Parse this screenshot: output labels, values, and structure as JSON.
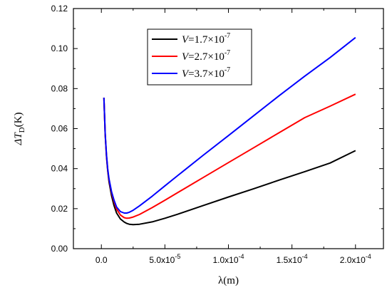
{
  "chart_data": {
    "type": "line",
    "xlabel": "λ(m)",
    "ylabel_main": "ΔT",
    "ylabel_sub": "D",
    "ylabel_unit": "(K)",
    "xlim": [
      -2.2e-05,
      0.000222
    ],
    "ylim": [
      0.0,
      0.12
    ],
    "x_ticks": [
      0,
      5e-05,
      0.0001,
      0.00015,
      0.0002
    ],
    "x_tick_labels": [
      "0.0",
      "5.0x10",
      "1.0x10",
      "1.5x10",
      "2.0x10"
    ],
    "x_tick_exponents": [
      "",
      "-5",
      "-4",
      "-4",
      "-4"
    ],
    "y_ticks": [
      0.0,
      0.02,
      0.04,
      0.06,
      0.08,
      0.1,
      0.12
    ],
    "y_tick_labels": [
      "0.00",
      "0.02",
      "0.04",
      "0.06",
      "0.08",
      "0.10",
      "0.12"
    ],
    "grid": false,
    "legend_position": "top-center",
    "series": [
      {
        "name": "V=1.7×10-7",
        "name_var": "V",
        "name_mantissa": "=1.7×10",
        "name_exp": "-7",
        "color": "#000000",
        "x": [
          2e-06,
          3e-06,
          4e-06,
          5e-06,
          6e-06,
          8e-06,
          1e-05,
          1.2e-05,
          1.5e-05,
          1.8e-05,
          2e-05,
          2.2e-05,
          2.5e-05,
          3e-05,
          4e-05,
          5e-05,
          6e-05,
          8e-05,
          0.0001,
          0.00012,
          0.00014,
          0.00016,
          0.00018,
          0.0002
        ],
        "y": [
          0.0755,
          0.057,
          0.046,
          0.039,
          0.0335,
          0.0265,
          0.0215,
          0.0178,
          0.0148,
          0.0133,
          0.0126,
          0.0122,
          0.012,
          0.0122,
          0.0134,
          0.0152,
          0.0172,
          0.0215,
          0.0258,
          0.03,
          0.0343,
          0.0385,
          0.0428,
          0.049
        ]
      },
      {
        "name": "V=2.7×10-7",
        "name_var": "V",
        "name_mantissa": "=2.7×10",
        "name_exp": "-7",
        "color": "#ff0000",
        "x": [
          2e-06,
          3e-06,
          4e-06,
          5e-06,
          6e-06,
          8e-06,
          1e-05,
          1.2e-05,
          1.5e-05,
          1.8e-05,
          2e-05,
          2.2e-05,
          2.5e-05,
          3e-05,
          4e-05,
          5e-05,
          6e-05,
          8e-05,
          0.0001,
          0.00012,
          0.00014,
          0.00016,
          0.00018,
          0.0002
        ],
        "y": [
          0.0755,
          0.057,
          0.0465,
          0.0395,
          0.0345,
          0.028,
          0.0235,
          0.0198,
          0.0168,
          0.0155,
          0.0152,
          0.0153,
          0.0158,
          0.0171,
          0.0205,
          0.0242,
          0.028,
          0.0355,
          0.043,
          0.0505,
          0.058,
          0.0655,
          0.0712,
          0.0772
        ]
      },
      {
        "name": "V=3.7×10-7",
        "name_var": "V",
        "name_mantissa": "=3.7×10",
        "name_exp": "-7",
        "color": "#0000ff",
        "x": [
          2e-06,
          3e-06,
          4e-06,
          5e-06,
          6e-06,
          8e-06,
          1e-05,
          1.2e-05,
          1.5e-05,
          1.8e-05,
          2e-05,
          2.2e-05,
          2.5e-05,
          3e-05,
          4e-05,
          5e-05,
          6e-05,
          8e-05,
          0.0001,
          0.00012,
          0.00014,
          0.00016,
          0.00018,
          0.0002
        ],
        "y": [
          0.0755,
          0.0575,
          0.047,
          0.04,
          0.035,
          0.0285,
          0.0242,
          0.0208,
          0.0185,
          0.0178,
          0.0178,
          0.0182,
          0.0192,
          0.0214,
          0.0262,
          0.0314,
          0.0365,
          0.0466,
          0.0565,
          0.0665,
          0.0765,
          0.0862,
          0.0955,
          0.1055
        ]
      }
    ]
  }
}
